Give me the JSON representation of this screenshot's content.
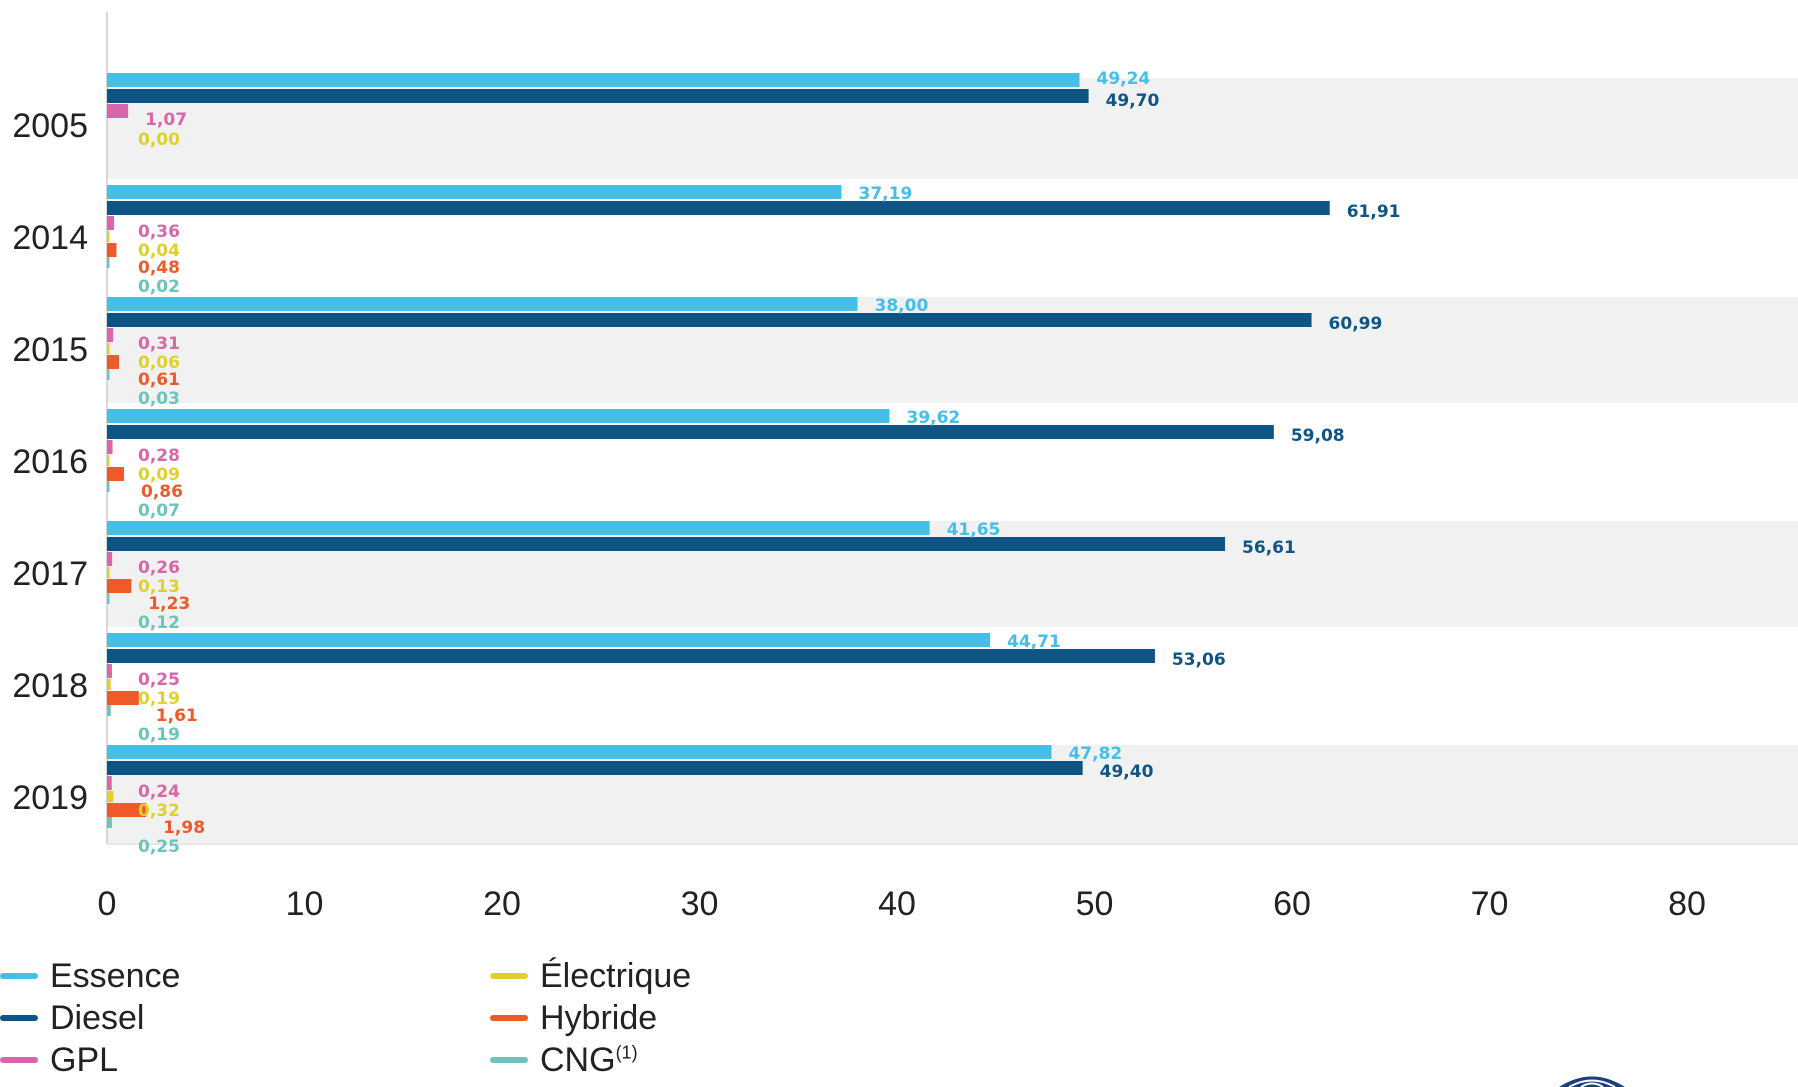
{
  "chart_data": {
    "type": "bar",
    "orientation": "horizontal",
    "categories": [
      "2005",
      "2014",
      "2015",
      "2016",
      "2017",
      "2018",
      "2019"
    ],
    "series": [
      {
        "name": "Essence",
        "color": "#45bfe8",
        "values": [
          49.24,
          37.19,
          38.0,
          39.62,
          41.65,
          44.71,
          47.82
        ],
        "labels": [
          "49,24",
          "37,19",
          "38,00",
          "39,62",
          "41,65",
          "44,71",
          "47,82"
        ]
      },
      {
        "name": "Diesel",
        "color": "#0e5585",
        "values": [
          49.7,
          61.91,
          60.99,
          59.08,
          56.61,
          53.06,
          49.4
        ],
        "labels": [
          "49,70",
          "61,91",
          "60,99",
          "59,08",
          "56,61",
          "53,06",
          "49,40"
        ]
      },
      {
        "name": "GPL",
        "color": "#d966a8",
        "values": [
          1.07,
          0.36,
          0.31,
          0.28,
          0.26,
          0.25,
          0.24
        ],
        "labels": [
          "1,07",
          "0,36",
          "0,31",
          "0,28",
          "0,26",
          "0,25",
          "0,24"
        ]
      },
      {
        "name": "Électrique",
        "color": "#dfd02e",
        "values": [
          0.0,
          0.04,
          0.06,
          0.09,
          0.13,
          0.19,
          0.32
        ],
        "labels": [
          "0,00",
          "0,04",
          "0,06",
          "0,09",
          "0,13",
          "0,19",
          "0,32"
        ]
      },
      {
        "name": "Hybride",
        "color": "#f05a28",
        "values": [
          null,
          0.48,
          0.61,
          0.86,
          1.23,
          1.61,
          1.98
        ],
        "labels": [
          "",
          "0,48",
          "0,61",
          "0,86",
          "1,23",
          "1,61",
          "1,98"
        ]
      },
      {
        "name": "CNG",
        "name_sup": "(1)",
        "color": "#6cc4bd",
        "values": [
          null,
          0.02,
          0.03,
          0.07,
          0.12,
          0.19,
          0.25
        ],
        "labels": [
          "",
          "0,02",
          "0,03",
          "0,07",
          "0,12",
          "0,19",
          "0,25"
        ]
      }
    ],
    "xlim": [
      0,
      85
    ],
    "xticks": [
      "0",
      "10",
      "20",
      "30",
      "40",
      "50",
      "60",
      "70",
      "80"
    ],
    "xtick_values": [
      0,
      10,
      20,
      30,
      40,
      50,
      60,
      70,
      80
    ],
    "title": "",
    "xlabel": "",
    "ylabel": "",
    "grid": false,
    "alternating_row_bands": true,
    "band_color": "#f1f1f1",
    "legend_position": "bottom-left"
  }
}
